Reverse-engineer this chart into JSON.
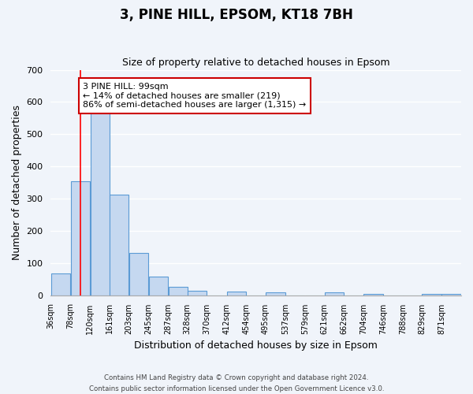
{
  "title": "3, PINE HILL, EPSOM, KT18 7BH",
  "subtitle": "Size of property relative to detached houses in Epsom",
  "xlabel": "Distribution of detached houses by size in Epsom",
  "ylabel": "Number of detached properties",
  "bin_labels": [
    "36sqm",
    "78sqm",
    "120sqm",
    "161sqm",
    "203sqm",
    "245sqm",
    "287sqm",
    "328sqm",
    "370sqm",
    "412sqm",
    "454sqm",
    "495sqm",
    "537sqm",
    "579sqm",
    "621sqm",
    "662sqm",
    "704sqm",
    "746sqm",
    "788sqm",
    "829sqm",
    "871sqm"
  ],
  "bar_values": [
    68,
    355,
    568,
    313,
    132,
    57,
    27,
    14,
    0,
    10,
    0,
    8,
    0,
    0,
    8,
    0,
    5,
    0,
    0,
    5,
    5
  ],
  "bin_edges": [
    36,
    78,
    120,
    161,
    203,
    245,
    287,
    328,
    370,
    412,
    454,
    495,
    537,
    579,
    621,
    662,
    704,
    746,
    788,
    829,
    871
  ],
  "bar_color": "#c5d8f0",
  "bar_edge_color": "#5b9bd5",
  "property_value": 99,
  "vline_color": "#ff0000",
  "annotation_text": "3 PINE HILL: 99sqm\n← 14% of detached houses are smaller (219)\n86% of semi-detached houses are larger (1,315) →",
  "annotation_box_color": "#ffffff",
  "annotation_box_edge": "#cc0000",
  "ylim": [
    0,
    700
  ],
  "yticks": [
    0,
    100,
    200,
    300,
    400,
    500,
    600,
    700
  ],
  "background_color": "#f0f4fa",
  "grid_color": "#ffffff",
  "footer_line1": "Contains HM Land Registry data © Crown copyright and database right 2024.",
  "footer_line2": "Contains public sector information licensed under the Open Government Licence v3.0."
}
